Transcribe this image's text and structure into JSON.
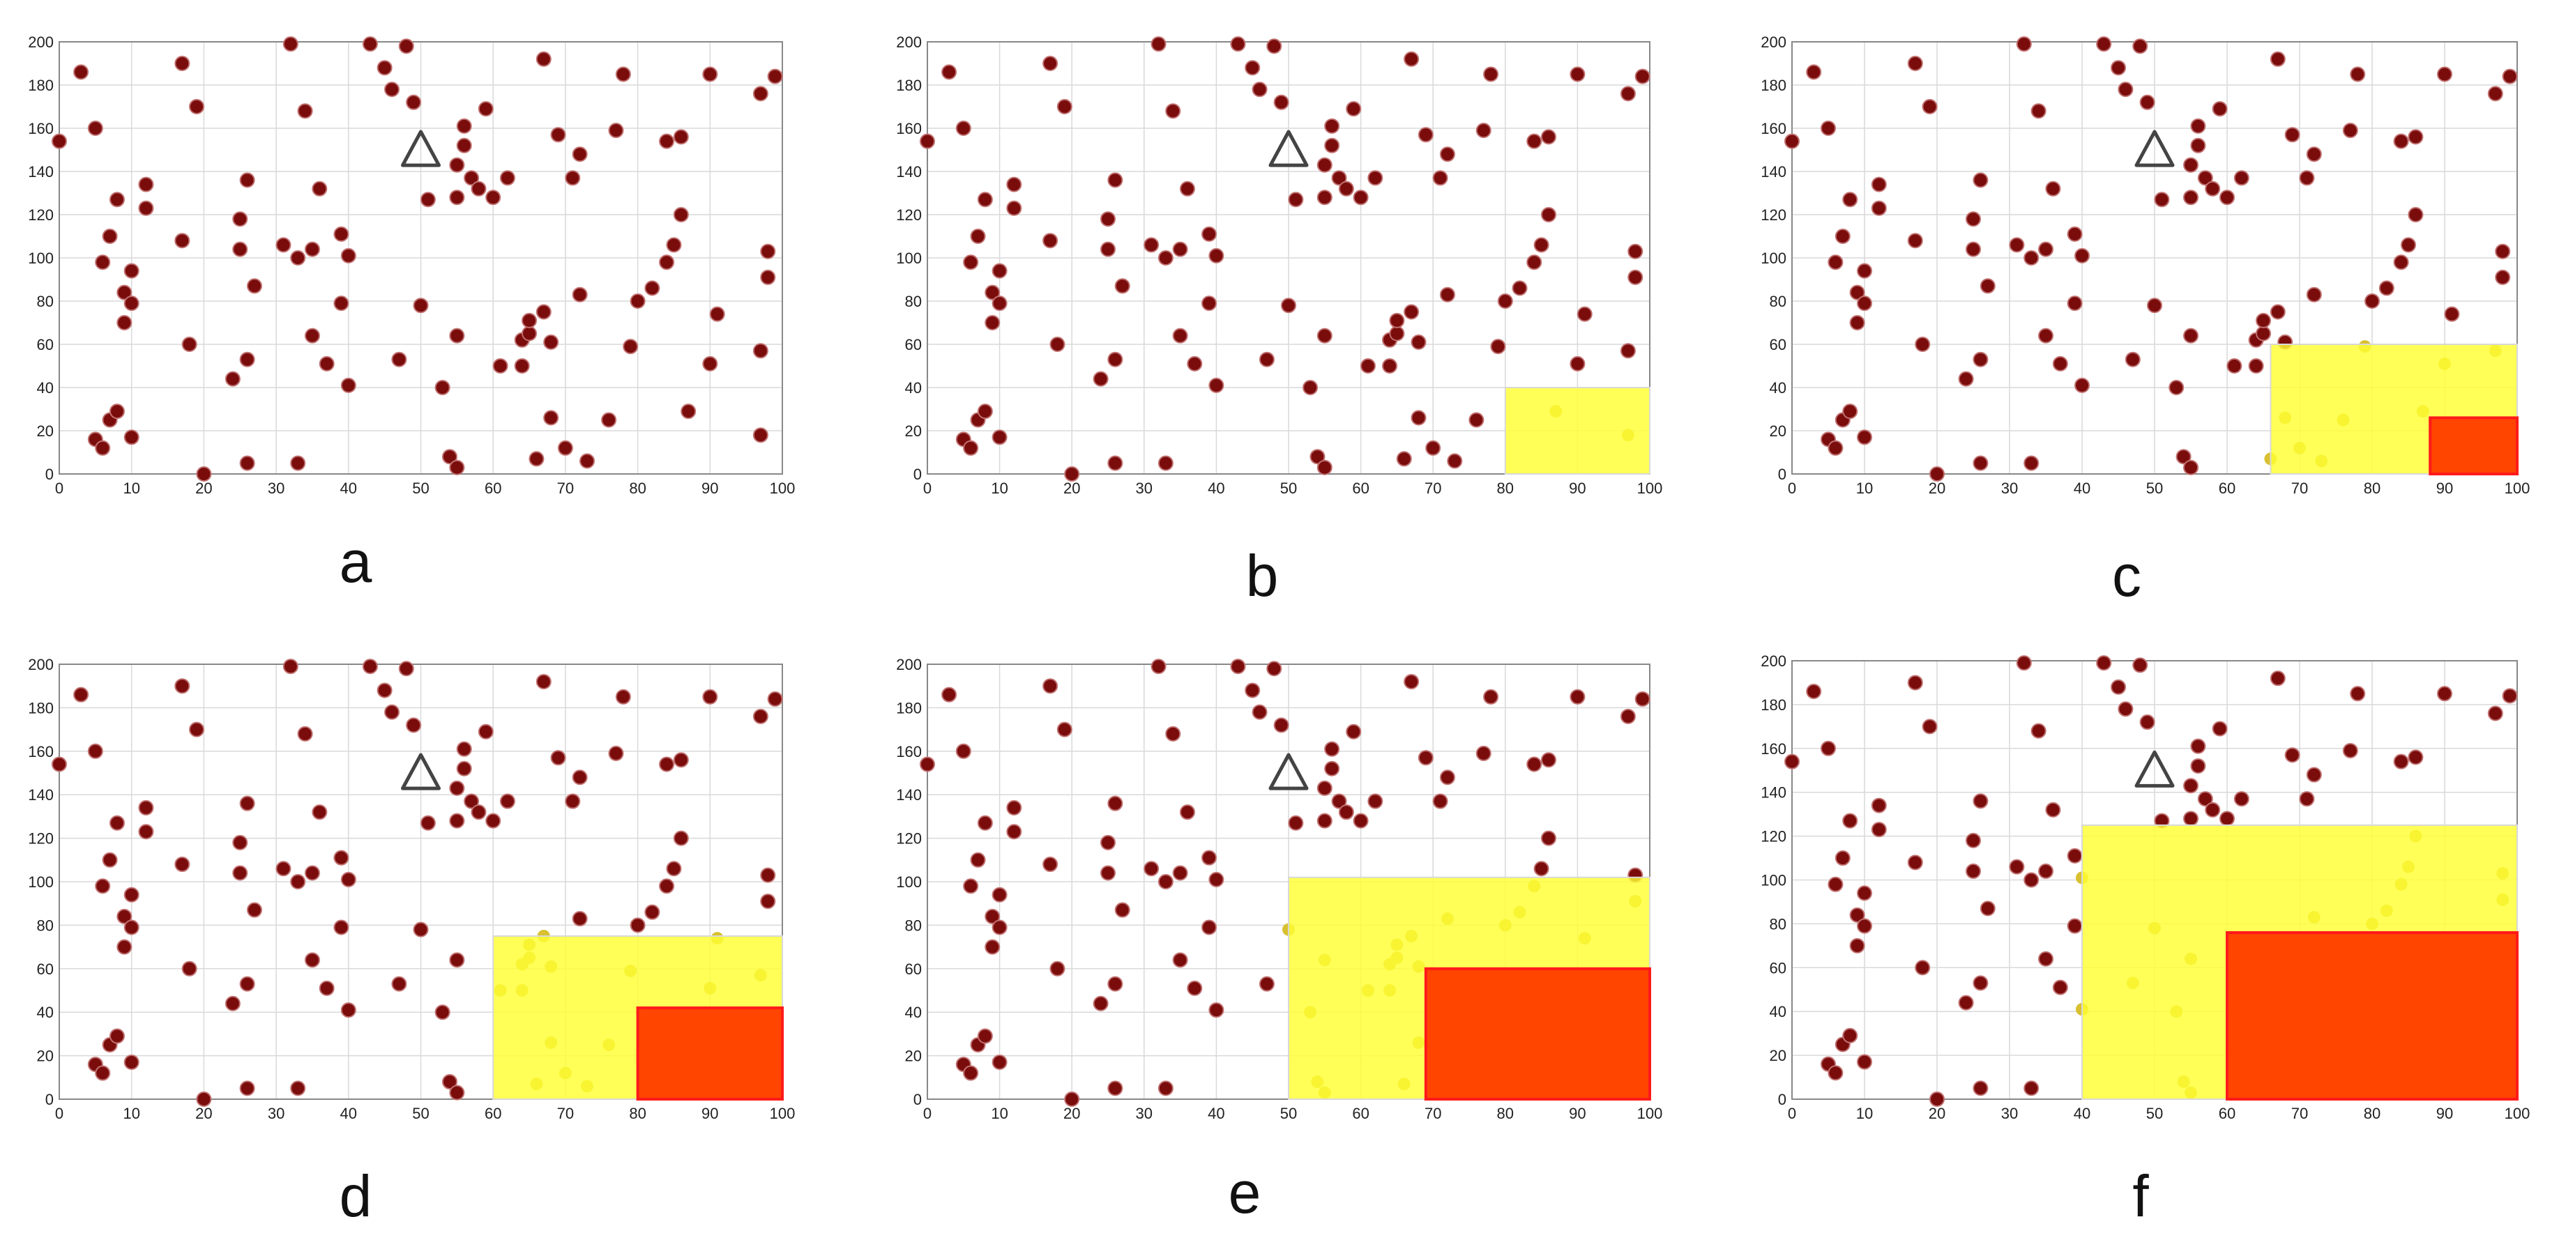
{
  "figure": {
    "panel_labels": [
      "a",
      "b",
      "c",
      "d",
      "e",
      "f"
    ],
    "colors": {
      "point_fill": "#7a0c0c",
      "point_stroke": "#c07070",
      "inner_region": "#ffff33",
      "inner_region_points": "#d8c030",
      "outer_region": "#ff4500",
      "outer_region_stroke": "#ff1a1a",
      "grid": "#d9d9d9",
      "axis": "#888888",
      "marker": "#444444"
    }
  },
  "chart_data": [
    {
      "type": "scatter",
      "panel": "a",
      "xlim": [
        0,
        100
      ],
      "ylim": [
        0,
        200
      ],
      "xticks": [
        0,
        10,
        20,
        30,
        40,
        50,
        60,
        70,
        80,
        90,
        100
      ],
      "yticks": [
        0,
        20,
        40,
        60,
        80,
        100,
        120,
        140,
        160,
        180,
        200
      ],
      "grid": true,
      "marker": {
        "shape": "triangle",
        "x": 50,
        "y": 150
      },
      "points": [
        [
          0,
          154
        ],
        [
          3,
          186
        ],
        [
          5,
          160
        ],
        [
          5,
          16
        ],
        [
          6,
          12
        ],
        [
          6,
          98
        ],
        [
          7,
          110
        ],
        [
          7,
          25
        ],
        [
          8,
          127
        ],
        [
          8,
          29
        ],
        [
          9,
          70
        ],
        [
          9,
          84
        ],
        [
          10,
          94
        ],
        [
          10,
          79
        ],
        [
          10,
          17
        ],
        [
          12,
          123
        ],
        [
          12,
          134
        ],
        [
          17,
          190
        ],
        [
          17,
          108
        ],
        [
          18,
          60
        ],
        [
          19,
          170
        ],
        [
          20,
          0
        ],
        [
          24,
          44
        ],
        [
          25,
          104
        ],
        [
          25,
          118
        ],
        [
          26,
          5
        ],
        [
          26,
          136
        ],
        [
          26,
          53
        ],
        [
          27,
          87
        ],
        [
          31,
          106
        ],
        [
          32,
          199
        ],
        [
          33,
          5
        ],
        [
          33,
          100
        ],
        [
          34,
          168
        ],
        [
          35,
          104
        ],
        [
          35,
          64
        ],
        [
          36,
          132
        ],
        [
          37,
          51
        ],
        [
          39,
          111
        ],
        [
          39,
          79
        ],
        [
          40,
          101
        ],
        [
          40,
          41
        ],
        [
          43,
          199
        ],
        [
          45,
          188
        ],
        [
          46,
          178
        ],
        [
          47,
          53
        ],
        [
          48,
          198
        ],
        [
          49,
          172
        ],
        [
          50,
          78
        ],
        [
          51,
          127
        ],
        [
          53,
          40
        ],
        [
          54,
          8
        ],
        [
          55,
          3
        ],
        [
          55,
          64
        ],
        [
          55,
          128
        ],
        [
          55,
          143
        ],
        [
          56,
          152
        ],
        [
          56,
          161
        ],
        [
          57,
          137
        ],
        [
          58,
          132
        ],
        [
          59,
          169
        ],
        [
          60,
          128
        ],
        [
          61,
          50
        ],
        [
          62,
          137
        ],
        [
          64,
          50
        ],
        [
          64,
          62
        ],
        [
          65,
          65
        ],
        [
          65,
          71
        ],
        [
          66,
          7
        ],
        [
          67,
          75
        ],
        [
          67,
          192
        ],
        [
          68,
          26
        ],
        [
          68,
          61
        ],
        [
          69,
          157
        ],
        [
          70,
          12
        ],
        [
          71,
          137
        ],
        [
          72,
          148
        ],
        [
          72,
          83
        ],
        [
          73,
          6
        ],
        [
          76,
          25
        ],
        [
          77,
          159
        ],
        [
          78,
          185
        ],
        [
          79,
          59
        ],
        [
          80,
          80
        ],
        [
          82,
          86
        ],
        [
          84,
          154
        ],
        [
          84,
          98
        ],
        [
          85,
          106
        ],
        [
          86,
          156
        ],
        [
          86,
          120
        ],
        [
          87,
          29
        ],
        [
          90,
          185
        ],
        [
          90,
          51
        ],
        [
          91,
          74
        ],
        [
          97,
          18
        ],
        [
          97,
          57
        ],
        [
          97,
          176
        ],
        [
          98,
          91
        ],
        [
          98,
          103
        ],
        [
          99,
          184
        ]
      ]
    },
    {
      "type": "scatter",
      "panel": "b",
      "xlim": [
        0,
        100
      ],
      "ylim": [
        0,
        200
      ],
      "xticks": [
        0,
        10,
        20,
        30,
        40,
        50,
        60,
        70,
        80,
        90,
        100
      ],
      "yticks": [
        0,
        20,
        40,
        60,
        80,
        100,
        120,
        140,
        160,
        180,
        200
      ],
      "grid": true,
      "marker": {
        "shape": "triangle",
        "x": 50,
        "y": 150
      },
      "regions": [
        {
          "color": "yellow",
          "x": [
            80,
            100
          ],
          "y": [
            0,
            40
          ]
        }
      ]
    },
    {
      "type": "scatter",
      "panel": "c",
      "xlim": [
        0,
        100
      ],
      "ylim": [
        0,
        200
      ],
      "xticks": [
        0,
        10,
        20,
        30,
        40,
        50,
        60,
        70,
        80,
        90,
        100
      ],
      "yticks": [
        0,
        20,
        40,
        60,
        80,
        100,
        120,
        140,
        160,
        180,
        200
      ],
      "grid": true,
      "marker": {
        "shape": "triangle",
        "x": 50,
        "y": 150
      },
      "regions": [
        {
          "color": "yellow",
          "x": [
            66,
            100
          ],
          "y": [
            0,
            60
          ]
        },
        {
          "color": "red",
          "x": [
            88,
            100
          ],
          "y": [
            0,
            26
          ]
        }
      ]
    },
    {
      "type": "scatter",
      "panel": "d",
      "xlim": [
        0,
        100
      ],
      "ylim": [
        0,
        200
      ],
      "xticks": [
        0,
        10,
        20,
        30,
        40,
        50,
        60,
        70,
        80,
        90,
        100
      ],
      "yticks": [
        0,
        20,
        40,
        60,
        80,
        100,
        120,
        140,
        160,
        180,
        200
      ],
      "grid": true,
      "marker": {
        "shape": "triangle",
        "x": 50,
        "y": 150
      },
      "regions": [
        {
          "color": "yellow",
          "x": [
            60,
            100
          ],
          "y": [
            0,
            75
          ]
        },
        {
          "color": "red",
          "x": [
            80,
            100
          ],
          "y": [
            0,
            42
          ]
        }
      ]
    },
    {
      "type": "scatter",
      "panel": "e",
      "xlim": [
        0,
        100
      ],
      "ylim": [
        0,
        200
      ],
      "xticks": [
        0,
        10,
        20,
        30,
        40,
        50,
        60,
        70,
        80,
        90,
        100
      ],
      "yticks": [
        0,
        20,
        40,
        60,
        80,
        100,
        120,
        140,
        160,
        180,
        200
      ],
      "grid": true,
      "marker": {
        "shape": "triangle",
        "x": 50,
        "y": 150
      },
      "regions": [
        {
          "color": "yellow",
          "x": [
            50,
            100
          ],
          "y": [
            0,
            102
          ]
        },
        {
          "color": "red",
          "x": [
            69,
            100
          ],
          "y": [
            0,
            60
          ]
        }
      ]
    },
    {
      "type": "scatter",
      "panel": "f",
      "xlim": [
        0,
        100
      ],
      "ylim": [
        0,
        200
      ],
      "xticks": [
        0,
        10,
        20,
        30,
        40,
        50,
        60,
        70,
        80,
        90,
        100
      ],
      "yticks": [
        0,
        20,
        40,
        60,
        80,
        100,
        120,
        140,
        160,
        180,
        200
      ],
      "grid": true,
      "marker": {
        "shape": "triangle",
        "x": 50,
        "y": 150
      },
      "regions": [
        {
          "color": "yellow",
          "x": [
            40,
            100
          ],
          "y": [
            0,
            125
          ]
        },
        {
          "color": "red",
          "x": [
            60,
            100
          ],
          "y": [
            0,
            76
          ]
        }
      ]
    }
  ]
}
